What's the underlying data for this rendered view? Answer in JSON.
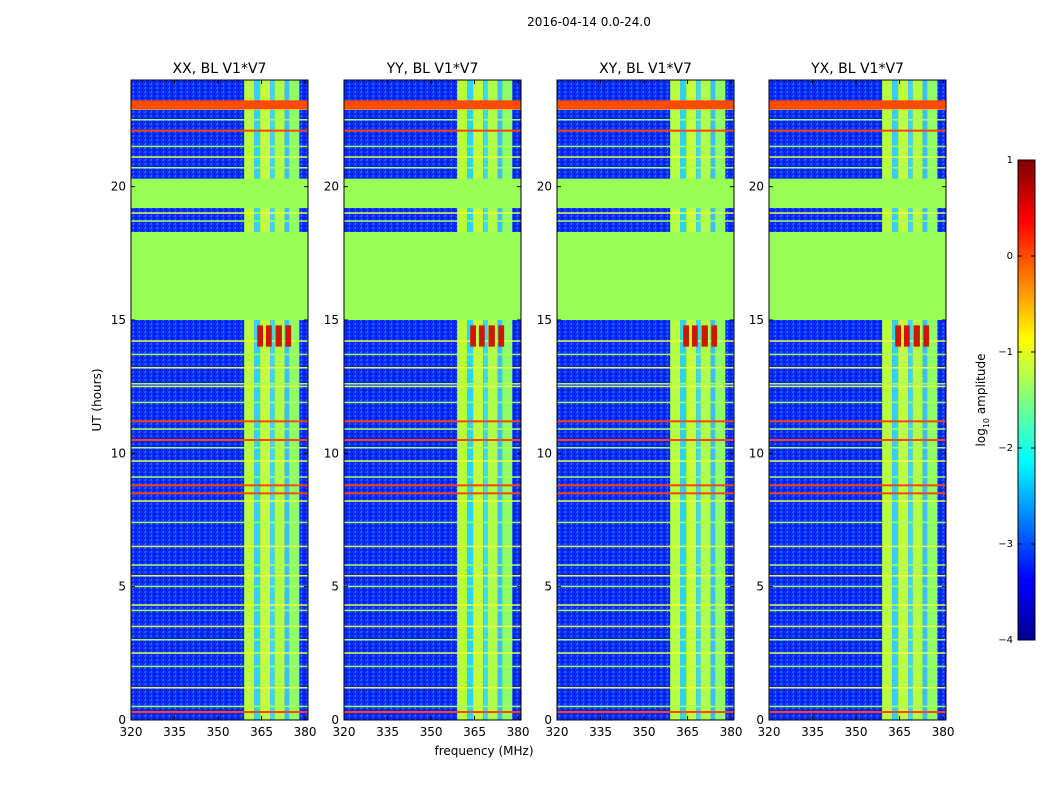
{
  "suptitle": "2016-04-14 0.0-24.0",
  "chart_data": {
    "type": "heatmap",
    "xlabel": "frequency (MHz)",
    "ylabel": "UT (hours)",
    "xlim": [
      320,
      381
    ],
    "ylim": [
      0,
      24
    ],
    "xticks": [
      320,
      335,
      350,
      365,
      380
    ],
    "yticks": [
      0,
      5,
      10,
      15,
      20
    ],
    "panels": [
      {
        "title": "XX, BL V1*V7",
        "corr": "XX"
      },
      {
        "title": "YY, BL V1*V7",
        "corr": "YY"
      },
      {
        "title": "XY, BL V1*V7",
        "corr": "XY"
      },
      {
        "title": "YX, BL V1*V7",
        "corr": "YX"
      }
    ],
    "flagged_bands_hours": [
      [
        15.0,
        18.3
      ],
      [
        19.2,
        20.3
      ]
    ],
    "signal_band_mhz": [
      359,
      378
    ],
    "colorbar": {
      "label": "log",
      "label_sub": "10",
      "label_rest": " amplitude",
      "range": [
        -4,
        1
      ],
      "ticks": [
        1,
        0,
        -1,
        -2,
        -3,
        -4
      ],
      "tick_labels": [
        "1",
        "0",
        "−1",
        "−2",
        "−3",
        "−4"
      ],
      "colormap": "jet"
    }
  },
  "colors": {
    "flagged": "#99ff55",
    "background_low": "#0a2dff",
    "hot": "#ff4500",
    "frame": "#000000"
  }
}
